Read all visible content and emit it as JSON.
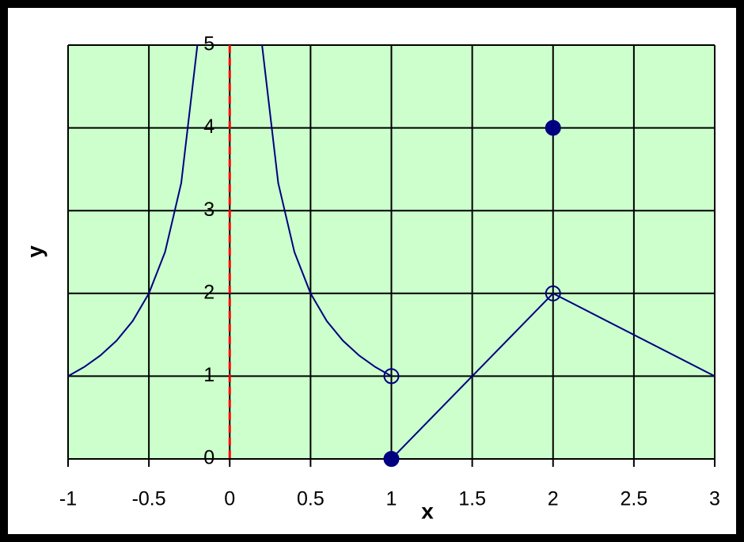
{
  "chart_data": {
    "type": "line",
    "x_label": "x",
    "y_label": "y",
    "xlim": [
      -1,
      3
    ],
    "ylim": [
      0,
      5
    ],
    "xticks": [
      -1,
      -0.5,
      0,
      0.5,
      1,
      1.5,
      2,
      2.5,
      3
    ],
    "yticks": [
      0,
      1,
      2,
      3,
      4,
      5
    ],
    "grid": true,
    "background_color": "#ccffcc",
    "series": [
      {
        "color": "#000080",
        "x": [
          -1,
          -0.9,
          -0.8,
          -0.7,
          -0.6,
          -0.5,
          -0.4,
          -0.3,
          -0.2
        ],
        "values": [
          1,
          1.111,
          1.25,
          1.429,
          1.667,
          2,
          2.5,
          3.333,
          5
        ]
      },
      {
        "color": "#000080",
        "x": [
          0.2,
          0.3,
          0.4,
          0.5,
          0.6,
          0.7,
          0.8,
          0.9,
          1
        ],
        "values": [
          5,
          3.333,
          2.5,
          2,
          1.667,
          1.429,
          1.25,
          1.111,
          1
        ]
      },
      {
        "color": "#000080",
        "x": [
          1,
          2,
          3
        ],
        "values": [
          0,
          2,
          1
        ]
      }
    ],
    "points": [
      {
        "x": 1,
        "y": 1,
        "filled": false
      },
      {
        "x": 2,
        "y": 2,
        "filled": false
      },
      {
        "x": 1,
        "y": 0,
        "filled": true
      },
      {
        "x": 2,
        "y": 4,
        "filled": true
      }
    ],
    "point_color": "#000080",
    "asymptote": {
      "x": 0,
      "color": "#ff0000"
    }
  }
}
